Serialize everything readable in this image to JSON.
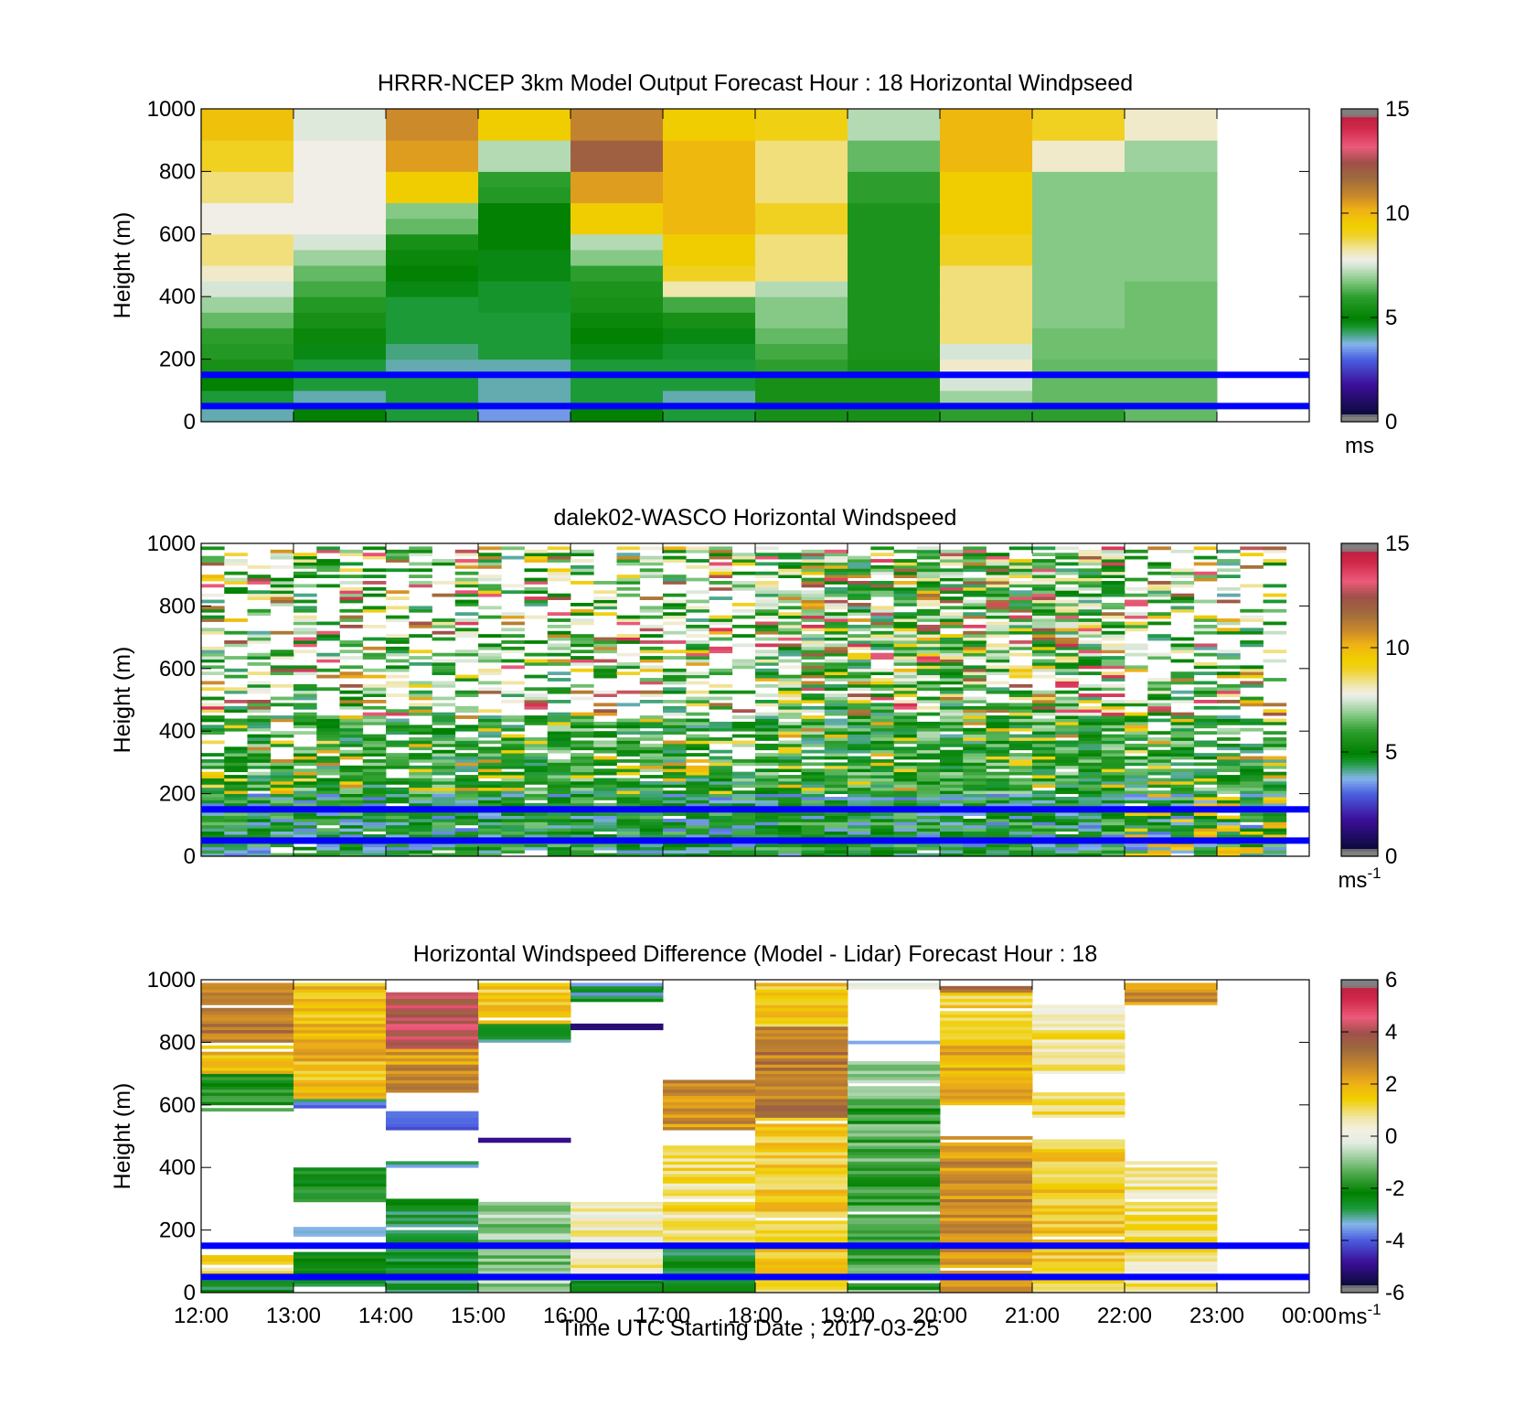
{
  "figure": {
    "xlabel": "Time UTC  Starting Date ; 2017-03-25",
    "x_tick_labels": [
      "12:00",
      "13:00",
      "14:00",
      "15:00",
      "16:00",
      "17:00",
      "18:00",
      "19:00",
      "20:00",
      "21:00",
      "22:00",
      "23:00",
      "00:00"
    ]
  },
  "chart_data": [
    {
      "type": "heatmap",
      "title": "HRRR-NCEP 3km Model Output   Forecast Hour : 18 Horizontal Windpseed",
      "xlabel": "",
      "ylabel": "Height (m)",
      "xlim": [
        "12:00",
        "00:00"
      ],
      "ylim": [
        0,
        1000
      ],
      "y_ticks": [
        0,
        200,
        400,
        600,
        800,
        1000
      ],
      "colorbar": {
        "min": 0,
        "max": 15,
        "ticks": [
          0,
          5,
          10,
          15
        ],
        "unit": "ms",
        "unit_sup": ""
      },
      "reference_lines_m": [
        150,
        50
      ],
      "columns_hours_utc": [
        "12:00",
        "13:00",
        "14:00",
        "15:00",
        "16:00",
        "17:00",
        "18:00",
        "19:00",
        "20:00",
        "21:00",
        "22:00"
      ],
      "heights_m": [
        25,
        75,
        125,
        175,
        225,
        275,
        325,
        375,
        425,
        475,
        525,
        575,
        625,
        675,
        725,
        775,
        825,
        875,
        925,
        975
      ],
      "values_ms": [
        [
          4.0,
          5.0,
          4.5,
          3.5,
          5.0,
          4.5,
          5.5,
          5.5,
          6.0,
          6.0,
          6.5
        ],
        [
          4.5,
          4.0,
          4.5,
          4.0,
          4.5,
          4.0,
          5.5,
          5.5,
          7.0,
          6.5,
          6.5
        ],
        [
          5.0,
          4.5,
          4.5,
          4.0,
          4.5,
          4.5,
          5.5,
          5.5,
          7.5,
          6.5,
          6.5
        ],
        [
          5.5,
          4.5,
          4.0,
          4.0,
          4.5,
          4.5,
          6.0,
          5.5,
          8.0,
          6.5,
          6.5
        ],
        [
          5.8,
          4.8,
          4.2,
          4.5,
          4.8,
          4.6,
          6.2,
          5.6,
          7.5,
          6.6,
          6.6
        ],
        [
          6.0,
          5.2,
          4.5,
          4.5,
          5.0,
          4.8,
          6.5,
          5.6,
          8.5,
          6.6,
          6.6
        ],
        [
          6.5,
          5.5,
          4.5,
          4.5,
          5.2,
          5.5,
          6.8,
          5.6,
          8.5,
          6.8,
          6.6
        ],
        [
          7.0,
          5.8,
          4.5,
          4.6,
          5.5,
          6.2,
          6.8,
          5.6,
          8.5,
          6.8,
          6.6
        ],
        [
          7.5,
          6.2,
          4.8,
          4.6,
          5.6,
          8.2,
          7.2,
          5.6,
          8.5,
          6.8,
          6.6
        ],
        [
          8.0,
          6.5,
          5.0,
          4.8,
          6.0,
          9.0,
          8.5,
          5.6,
          8.5,
          6.8,
          6.8
        ],
        [
          8.5,
          7.0,
          5.2,
          4.8,
          6.8,
          9.5,
          8.5,
          5.6,
          9.0,
          6.8,
          6.8
        ],
        [
          8.5,
          7.5,
          5.5,
          5.0,
          7.2,
          9.5,
          8.5,
          5.6,
          9.0,
          6.8,
          6.8
        ],
        [
          7.8,
          7.8,
          6.5,
          5.0,
          9.5,
          10.0,
          9.0,
          5.6,
          9.5,
          6.8,
          6.8
        ],
        [
          7.8,
          7.8,
          6.8,
          5.0,
          9.5,
          10.0,
          9.0,
          5.6,
          9.5,
          6.8,
          6.8
        ],
        [
          8.5,
          7.8,
          9.5,
          5.8,
          10.5,
          10.0,
          8.5,
          6.0,
          9.5,
          6.8,
          6.8
        ],
        [
          8.5,
          7.8,
          9.5,
          6.0,
          10.5,
          10.0,
          8.5,
          6.0,
          9.5,
          6.8,
          6.8
        ],
        [
          9.0,
          7.8,
          10.5,
          7.2,
          12.0,
          10.0,
          8.5,
          6.5,
          10.0,
          8.0,
          7.0
        ],
        [
          9.0,
          7.8,
          10.5,
          7.2,
          12.0,
          10.0,
          8.5,
          6.5,
          10.0,
          8.0,
          7.0
        ],
        [
          9.8,
          7.6,
          10.8,
          9.5,
          11.0,
          9.5,
          9.2,
          7.2,
          10.0,
          9.0,
          8.0
        ],
        [
          9.8,
          7.6,
          10.8,
          9.5,
          11.0,
          9.5,
          9.2,
          7.2,
          10.0,
          9.0,
          8.0
        ]
      ]
    },
    {
      "type": "heatmap",
      "title": "dalek02-WASCO  Horizontal Windspeed",
      "xlabel": "",
      "ylabel": "Height (m)",
      "xlim": [
        "12:00",
        "00:00"
      ],
      "ylim": [
        0,
        1000
      ],
      "y_ticks": [
        0,
        200,
        400,
        600,
        800,
        1000
      ],
      "colorbar": {
        "min": 0,
        "max": 15,
        "ticks": [
          0,
          5,
          10,
          15
        ],
        "unit": "ms",
        "unit_sup": "-1"
      },
      "reference_lines_m": [
        150,
        50
      ],
      "note": "Lidar windspeed at ~15-minute columns and ~10 m range gates; values in the green 4-6 m/s band below ~400 m with scattered 8-13 m/s returns aloft and many missing gates above 300 m.",
      "column_period_min": 15,
      "gate_spacing_m": 10
    },
    {
      "type": "heatmap",
      "title": "Horizontal Windspeed Difference (Model - Lidar) Forecast Hour : 18",
      "xlabel": "Time UTC  Starting Date ; 2017-03-25",
      "ylabel": "Height (m)",
      "xlim": [
        "12:00",
        "00:00"
      ],
      "ylim": [
        0,
        1000
      ],
      "y_ticks": [
        0,
        200,
        400,
        600,
        800,
        1000
      ],
      "colorbar": {
        "min": -6,
        "max": 6,
        "ticks": [
          -6,
          -4,
          -2,
          0,
          2,
          4,
          6
        ],
        "unit": "ms",
        "unit_sup": "-1"
      },
      "reference_lines_m": [
        150,
        50
      ],
      "columns_hours_utc": [
        "12:00",
        "13:00",
        "14:00",
        "15:00",
        "16:00",
        "17:00",
        "18:00",
        "19:00",
        "20:00",
        "21:00",
        "22:00"
      ],
      "segments": [
        [
          [
            0,
            40,
            -2.5
          ],
          [
            60,
            120,
            1.0
          ],
          [
            580,
            700,
            -1.5
          ],
          [
            700,
            790,
            2.0
          ],
          [
            800,
            990,
            3.0
          ]
        ],
        [
          [
            20,
            130,
            -2.5
          ],
          [
            180,
            210,
            -3.0
          ],
          [
            290,
            400,
            -2.2
          ],
          [
            590,
            620,
            -3.5
          ],
          [
            620,
            990,
            1.8
          ]
        ],
        [
          [
            0,
            310,
            -2.5
          ],
          [
            400,
            420,
            -3.0
          ],
          [
            520,
            580,
            -3.5
          ],
          [
            640,
            780,
            2.5
          ],
          [
            780,
            960,
            4.0
          ]
        ],
        [
          [
            0,
            290,
            -1.0
          ],
          [
            480,
            495,
            -5.5
          ],
          [
            800,
            860,
            -2.5
          ],
          [
            860,
            990,
            1.5
          ]
        ],
        [
          [
            0,
            40,
            -2.0
          ],
          [
            40,
            290,
            0.5
          ],
          [
            840,
            860,
            -5.0
          ],
          [
            930,
            990,
            -3.0
          ]
        ],
        [
          [
            0,
            150,
            -2.5
          ],
          [
            150,
            470,
            1.0
          ],
          [
            520,
            680,
            2.5
          ]
        ],
        [
          [
            0,
            990,
            1.5
          ],
          [
            550,
            850,
            3.0
          ]
        ],
        [
          [
            0,
            600,
            -1.5
          ],
          [
            600,
            740,
            -1.0
          ],
          [
            795,
            805,
            -4.0
          ],
          [
            970,
            990,
            0.3
          ]
        ],
        [
          [
            0,
            500,
            2.5
          ],
          [
            600,
            800,
            2.0
          ],
          [
            800,
            960,
            1.5
          ],
          [
            960,
            990,
            3.5
          ]
        ],
        [
          [
            0,
            490,
            1.5
          ],
          [
            560,
            640,
            1.0
          ],
          [
            700,
            920,
            0.8
          ]
        ],
        [
          [
            0,
            420,
            0.8
          ],
          [
            920,
            990,
            2.5
          ]
        ]
      ]
    }
  ]
}
